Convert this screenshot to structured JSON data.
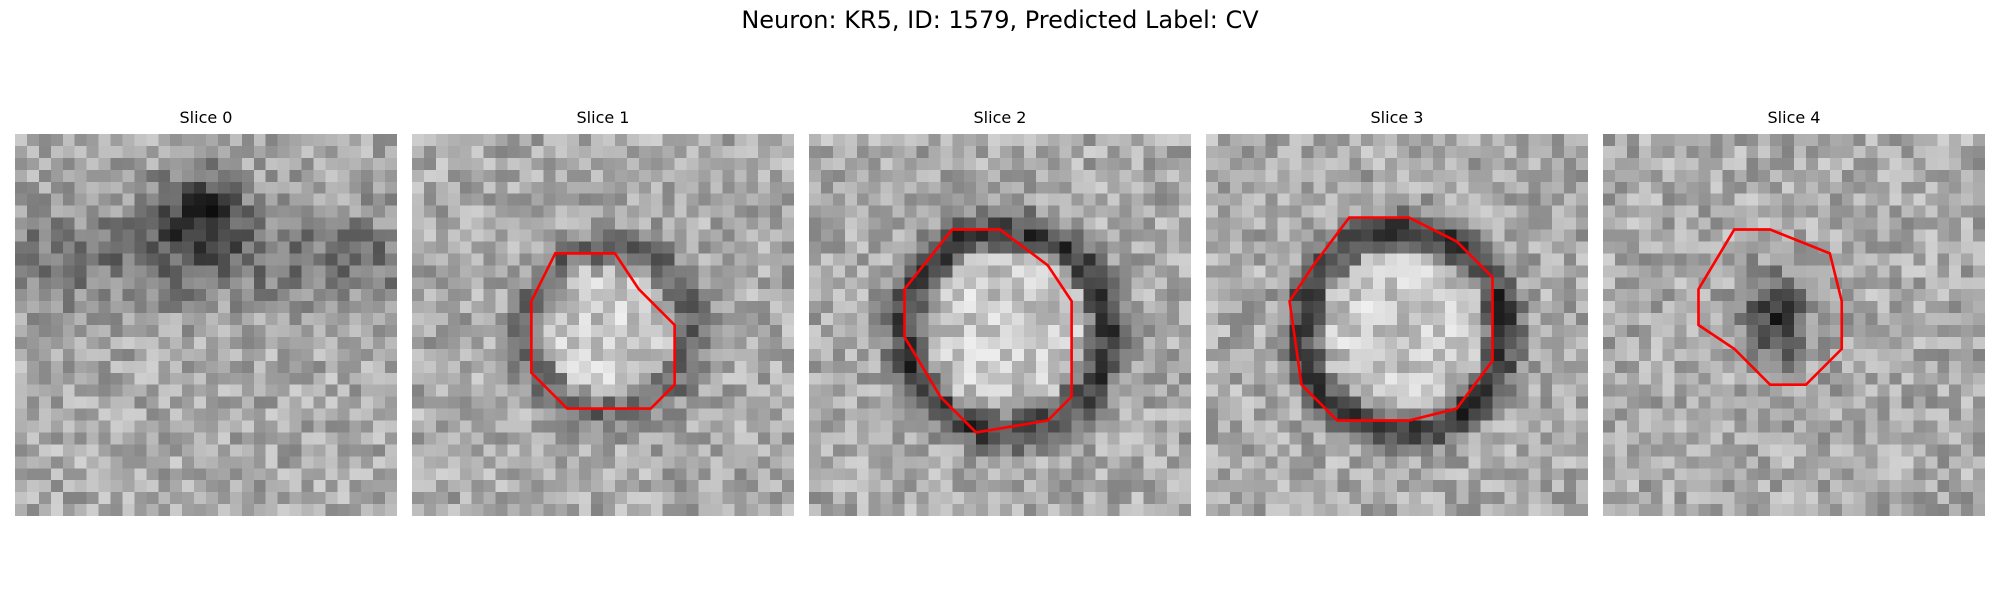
{
  "figure": {
    "title": "Neuron: KR5, ID: 1579, Predicted Label: CV"
  },
  "panels": [
    {
      "title": "Slice 0",
      "icon": "grayscale-em-slice-no-contour",
      "seed": 11,
      "ring": 0,
      "blob": 1
    },
    {
      "title": "Slice 1",
      "icon": "grayscale-em-slice-red-contour",
      "seed": 23,
      "ring": 0.6,
      "blob": 0
    },
    {
      "title": "Slice 2",
      "icon": "grayscale-em-slice-red-contour",
      "seed": 37,
      "ring": 1,
      "blob": 0
    },
    {
      "title": "Slice 3",
      "icon": "grayscale-em-slice-red-contour",
      "seed": 41,
      "ring": 1,
      "blob": 0
    },
    {
      "title": "Slice 4",
      "icon": "grayscale-em-slice-red-contour",
      "seed": 53,
      "ring": 0,
      "blob": 2
    }
  ],
  "colors": {
    "contour": "#ff0000"
  }
}
